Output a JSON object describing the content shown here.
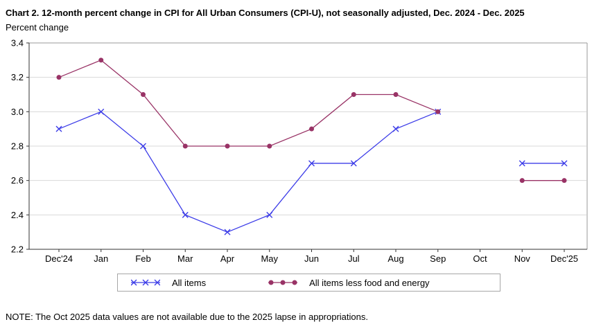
{
  "header": {
    "title": "Chart 2. 12-month percent change in CPI for All Urban Consumers (CPI-U), not seasonally adjusted, Dec. 2024 - Dec. 2025",
    "y_axis_title": "Percent change"
  },
  "note": "NOTE: The Oct 2025 data values are not available due to the 2025 lapse in appropriations.",
  "chart_data": {
    "type": "line",
    "title": "Chart 2. 12-month percent change in CPI for All Urban Consumers (CPI-U), not seasonally adjusted, Dec. 2024 - Dec. 2025",
    "ylabel": "Percent change",
    "xlabel": "",
    "categories": [
      "Dec'24",
      "Jan",
      "Feb",
      "Mar",
      "Apr",
      "May",
      "Jun",
      "Jul",
      "Aug",
      "Sep",
      "Oct",
      "Nov",
      "Dec'25"
    ],
    "series": [
      {
        "name": "All items",
        "marker": "x",
        "color": "#3c3ce8",
        "values": [
          2.9,
          3.0,
          2.8,
          2.4,
          2.3,
          2.4,
          2.7,
          2.7,
          2.9,
          3.0,
          null,
          2.7,
          2.7
        ]
      },
      {
        "name": "All items less food and energy",
        "marker": "dot",
        "color": "#993366",
        "values": [
          3.2,
          3.3,
          3.1,
          2.8,
          2.8,
          2.8,
          2.9,
          3.1,
          3.1,
          3.0,
          null,
          2.6,
          2.6
        ]
      }
    ],
    "ylim": [
      2.2,
      3.4
    ],
    "ytick_step": 0.2,
    "grid": true,
    "legend_position": "bottom",
    "gap_note": "Oct 2025 values missing; line breaks between Sep and Nov",
    "colors": {
      "gridline": "#d8d8d8",
      "axis": "#333333",
      "box": "#999999",
      "background": "#ffffff"
    }
  }
}
